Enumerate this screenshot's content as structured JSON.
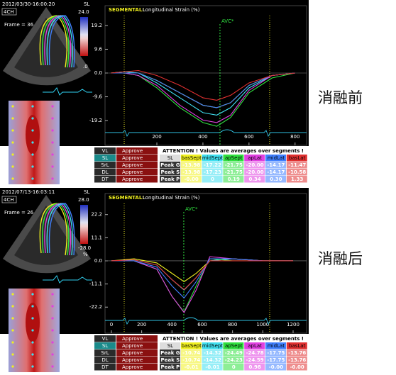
{
  "labels": [
    "消融前",
    "消融后"
  ],
  "panels": [
    {
      "image": {
        "timestamp": "2012/03/30-16:00:20",
        "view": "4CH",
        "frame": "Frame = 36",
        "param": "SL",
        "scale_max": "24.0",
        "unit": ".0"
      },
      "chart": {
        "title_prefix": "SEGMENTAL:",
        "title_rest": "Longitudinal Strain (%)",
        "avc_label": "AVC*",
        "avc_x": 474,
        "xlim": [
          -25,
          850
        ],
        "ylim": [
          -29.2,
          27.2
        ],
        "xticks": [
          200,
          400,
          600,
          800
        ],
        "yticks": [
          19.2,
          9.6,
          {
            "value": 0,
            "label": "0.0"
          },
          -9.6,
          -19.2
        ],
        "x": [
          0,
          60,
          120,
          200,
          300,
          400,
          460,
          520,
          600,
          700,
          800
        ],
        "series": [
          {
            "color": "#f0f020",
            "values": [
              0,
              0.5,
              0,
              -3,
              -8,
              -13,
              -14,
              -12,
              -5,
              -1,
              0
            ]
          },
          {
            "color": "#40e0f0",
            "values": [
              0,
              0.5,
              0,
              -4,
              -10,
              -16,
              -17,
              -14,
              -6,
              -1,
              0
            ]
          },
          {
            "color": "#30e040",
            "values": [
              0,
              0,
              -1,
              -6,
              -14,
              -20,
              -21.5,
              -18,
              -8,
              -2,
              0
            ]
          },
          {
            "color": "#e040e0",
            "values": [
              0,
              0,
              -1,
              -5,
              -13,
              -19,
              -20,
              -17,
              -7,
              -1,
              0
            ]
          },
          {
            "color": "#4080ff",
            "values": [
              0,
              0,
              0,
              -3,
              -8,
              -13,
              -14,
              -12,
              -5,
              -1,
              0
            ]
          },
          {
            "color": "#e03030",
            "values": [
              0,
              0.5,
              1,
              -1,
              -5,
              -10,
              -11,
              -9,
              -4,
              -1,
              0
            ]
          }
        ]
      },
      "status_table": [
        [
          "VL",
          "Approve"
        ],
        [
          "SL",
          "Approve"
        ],
        [
          "SrL",
          "Approve"
        ],
        [
          "DL",
          "Approve"
        ],
        [
          "DT",
          "Approve"
        ]
      ],
      "value_table": {
        "attention": "ATTENTION !  Values are averages over segments !",
        "header": [
          "SL",
          "basSept",
          "midSept",
          "apSept",
          "apLat",
          "midLat",
          "basLat"
        ],
        "rows": [
          [
            "Peak G",
            "-13.98",
            "-17.22",
            "-21.75",
            "-20.00",
            "-14.17",
            "-11.47"
          ],
          [
            "Peak S",
            "-13.98",
            "-17.23",
            "-21.75",
            "-20.00",
            "-14.17",
            "-10.58"
          ],
          [
            "Peak P",
            "-0.00",
            "0",
            "0.19",
            "0.34",
            "0.30",
            "1.33"
          ]
        ]
      }
    },
    {
      "image": {
        "timestamp": "2012/07/13-16:03:11",
        "view": "4CH",
        "frame": "Frame = 26",
        "param": "SL",
        "scale_max": "28.0",
        "scale_min": "-28.0",
        "unit": "%"
      },
      "chart": {
        "title_prefix": "SEGMENTAL:",
        "title_rest": "Longitudinal Strain (%)",
        "avc_label": "AVC*",
        "avc_x": 478,
        "xlim": [
          -42,
          1289
        ],
        "ylim": [
          -34.7,
          32.3
        ],
        "xticks": [
          0,
          200,
          400,
          600,
          800,
          1000,
          1200
        ],
        "yticks": [
          22.2,
          11.1,
          {
            "value": 0,
            "label": "0.0"
          },
          -11.1,
          -22.2
        ],
        "x": [
          0,
          150,
          300,
          400,
          480,
          560,
          650,
          800,
          1000,
          1200
        ],
        "series": [
          {
            "color": "#f0f020",
            "values": [
              0,
              1,
              -1,
              -6,
              -10,
              -6,
              0,
              1,
              0,
              0
            ]
          },
          {
            "color": "#40e0f0",
            "values": [
              0,
              0.5,
              -2,
              -9,
              -14,
              -8,
              0,
              1,
              0,
              0
            ]
          },
          {
            "color": "#30e040",
            "values": [
              0,
              0,
              -4,
              -17,
              -24.5,
              -12,
              1,
              0,
              0,
              0
            ]
          },
          {
            "color": "#e040e0",
            "values": [
              0,
              0,
              -4,
              -17,
              -24.8,
              -14,
              2,
              1,
              0,
              0
            ]
          },
          {
            "color": "#4080ff",
            "values": [
              0,
              0,
              -3,
              -12,
              -17.8,
              -10,
              1,
              1,
              0,
              0
            ]
          },
          {
            "color": "#e03030",
            "values": [
              0,
              0.5,
              -2,
              -9,
              -13.8,
              -8,
              0,
              0,
              0,
              0
            ]
          }
        ]
      },
      "status_table": [
        [
          "VL",
          "Approve"
        ],
        [
          "SL",
          "Approve"
        ],
        [
          "SrL",
          "Approve"
        ],
        [
          "DL",
          "Approve"
        ],
        [
          "DT",
          "Approve"
        ]
      ],
      "value_table": {
        "attention": "ATTENTION !  Values are averages over segments !",
        "header": [
          "SL",
          "basSept",
          "midSept",
          "apSept",
          "apLat",
          "midLat",
          "basLat"
        ],
        "rows": [
          [
            "Peak G",
            "-10.74",
            "-14.32",
            "-24.49",
            "-24.78",
            "-17.75",
            "-13.76"
          ],
          [
            "Peak S",
            "-10.74",
            "-14.32",
            "-24.23",
            "-24.59",
            "-17.75",
            "-13.76"
          ],
          [
            "Peak P",
            "-0.01",
            "-0.01",
            "0",
            "0.98",
            "-0.00",
            "-0.00"
          ]
        ]
      }
    }
  ]
}
